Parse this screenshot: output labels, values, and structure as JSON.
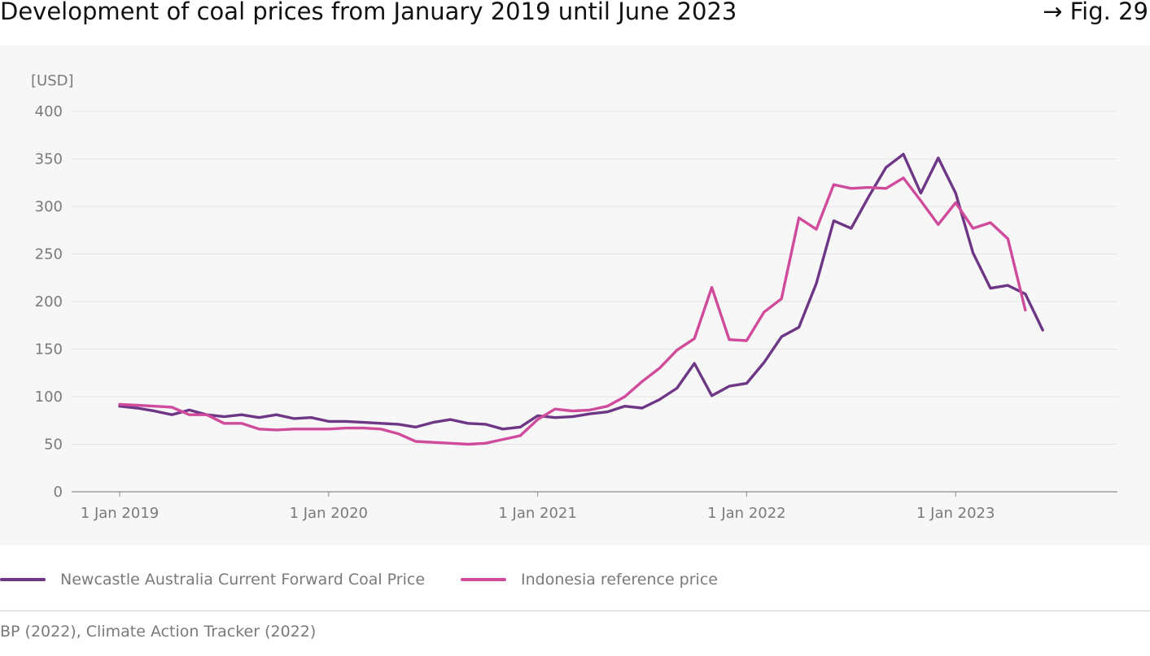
{
  "header": {
    "title": "Development of coal prices from January 2019 until June 2023",
    "fig_ref": "→ Fig. 29"
  },
  "legend": {
    "items": [
      {
        "label": "Newcastle Australia Current Forward Coal Price",
        "color": "#6e3785"
      },
      {
        "label": "Indonesia reference price",
        "color": "#d04b9b"
      }
    ]
  },
  "source": "BP (2022), Climate Action Tracker (2022)",
  "chart_data": {
    "type": "line",
    "title": "Development of coal prices from January 2019 until June 2023",
    "ylabel": "[USD]",
    "ylim": [
      0,
      400
    ],
    "yticks": [
      "0",
      "50",
      "100",
      "150",
      "200",
      "250",
      "300",
      "350",
      "400"
    ],
    "xticks": [
      {
        "label": "1 Jan 2019",
        "date": "2019-01"
      },
      {
        "label": "1 Jan 2020",
        "date": "2020-01"
      },
      {
        "label": "1 Jan 2021",
        "date": "2021-01"
      },
      {
        "label": "1 Jan 2022",
        "date": "2022-01"
      },
      {
        "label": "1 Jan 2023",
        "date": "2023-01"
      }
    ],
    "grid": true,
    "legend_position": "bottom",
    "series": [
      {
        "name": "Newcastle Australia Current Forward Coal Price",
        "color": "#6e3785",
        "x": [
          "2019-01",
          "2019-02",
          "2019-03",
          "2019-04",
          "2019-05",
          "2019-06",
          "2019-07",
          "2019-08",
          "2019-09",
          "2019-10",
          "2019-11",
          "2019-12",
          "2020-01",
          "2020-02",
          "2020-03",
          "2020-04",
          "2020-05",
          "2020-06",
          "2020-07",
          "2020-08",
          "2020-09",
          "2020-10",
          "2020-11",
          "2020-12",
          "2021-01",
          "2021-02",
          "2021-03",
          "2021-04",
          "2021-05",
          "2021-06",
          "2021-07",
          "2021-08",
          "2021-09",
          "2021-10",
          "2021-11",
          "2021-12",
          "2022-01",
          "2022-02",
          "2022-03",
          "2022-04",
          "2022-05",
          "2022-06",
          "2022-07",
          "2022-08",
          "2022-09",
          "2022-10",
          "2022-11",
          "2022-12",
          "2023-01",
          "2023-02",
          "2023-03",
          "2023-04",
          "2023-05",
          "2023-06"
        ],
        "values": [
          90,
          88,
          85,
          81,
          86,
          81,
          79,
          81,
          78,
          81,
          77,
          78,
          74,
          74,
          73,
          72,
          71,
          68,
          73,
          76,
          72,
          71,
          66,
          68,
          80,
          78,
          79,
          82,
          84,
          90,
          88,
          97,
          109,
          135,
          101,
          111,
          114,
          136,
          163,
          173,
          219,
          285,
          277,
          310,
          341,
          355,
          314,
          351,
          314,
          251,
          214,
          217,
          208,
          170
        ]
      },
      {
        "name": "Indonesia reference price",
        "color": "#d04b9b",
        "x": [
          "2019-01",
          "2019-02",
          "2019-03",
          "2019-04",
          "2019-05",
          "2019-06",
          "2019-07",
          "2019-08",
          "2019-09",
          "2019-10",
          "2019-11",
          "2019-12",
          "2020-01",
          "2020-02",
          "2020-03",
          "2020-04",
          "2020-05",
          "2020-06",
          "2020-07",
          "2020-08",
          "2020-09",
          "2020-10",
          "2020-11",
          "2020-12",
          "2021-01",
          "2021-02",
          "2021-03",
          "2021-04",
          "2021-05",
          "2021-06",
          "2021-07",
          "2021-08",
          "2021-09",
          "2021-10",
          "2021-11",
          "2021-12",
          "2022-01",
          "2022-02",
          "2022-03",
          "2022-04",
          "2022-05",
          "2022-06",
          "2022-07",
          "2022-08",
          "2022-09",
          "2022-10",
          "2022-11",
          "2022-12",
          "2023-01",
          "2023-02",
          "2023-03",
          "2023-04",
          "2023-05"
        ],
        "values": [
          92,
          91,
          90,
          89,
          81,
          81,
          72,
          72,
          66,
          65,
          66,
          66,
          66,
          67,
          67,
          66,
          61,
          53,
          52,
          51,
          50,
          51,
          55,
          59,
          76,
          87,
          85,
          86,
          90,
          100,
          116,
          130,
          149,
          161,
          215,
          160,
          159,
          189,
          203,
          288,
          276,
          323,
          319,
          320,
          319,
          330,
          306,
          281,
          304,
          277,
          283,
          266,
          191
        ]
      }
    ]
  }
}
